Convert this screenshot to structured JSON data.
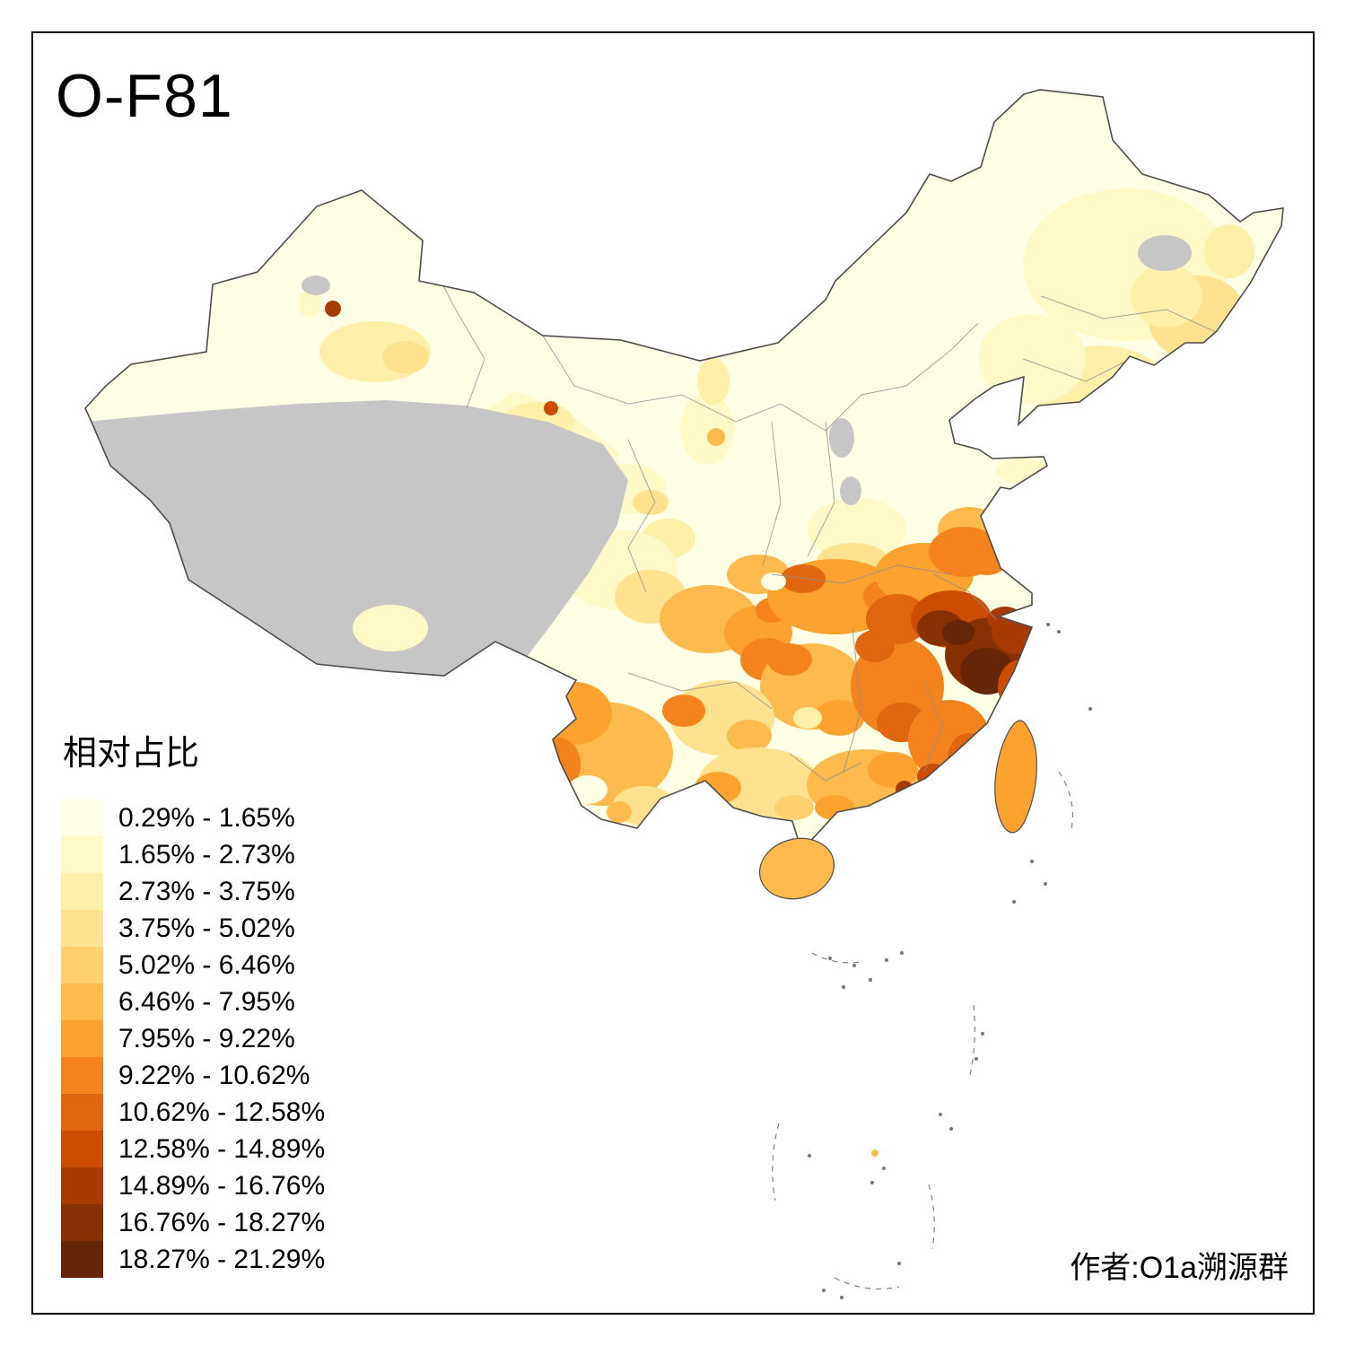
{
  "title": "O-F81",
  "legend": {
    "title": "相对占比",
    "items": [
      {
        "label": "0.29% - 1.65%"
      },
      {
        "label": "1.65% - 2.73%"
      },
      {
        "label": "2.73% - 3.75%"
      },
      {
        "label": "3.75% - 5.02%"
      },
      {
        "label": "5.02% - 6.46%"
      },
      {
        "label": "6.46% - 7.95%"
      },
      {
        "label": "7.95% - 9.22%"
      },
      {
        "label": "9.22% - 10.62%"
      },
      {
        "label": "10.62% - 12.58%"
      },
      {
        "label": "12.58% - 14.89%"
      },
      {
        "label": "14.89% - 16.76%"
      },
      {
        "label": "16.76% - 18.27%"
      },
      {
        "label": "18.27% - 21.29%"
      }
    ]
  },
  "map": {
    "ramp": [
      "#FFFFE5",
      "#FFF9C7",
      "#FEF0A9",
      "#FEE28F",
      "#FED16E",
      "#FEBA4D",
      "#FEA22F",
      "#F5831D",
      "#E0660F",
      "#CC4C02",
      "#A83A03",
      "#873004",
      "#662506"
    ],
    "na_color": "#C6C6C6"
  },
  "colors": {
    "outline": "#4D4D4D",
    "inner_border": "#8F8F8F",
    "sea_marks": "#777777",
    "frame": "#000000",
    "background": "#FFFFFF",
    "text": "#000000"
  },
  "footer": {
    "author": "作者:O1a溯源群"
  }
}
